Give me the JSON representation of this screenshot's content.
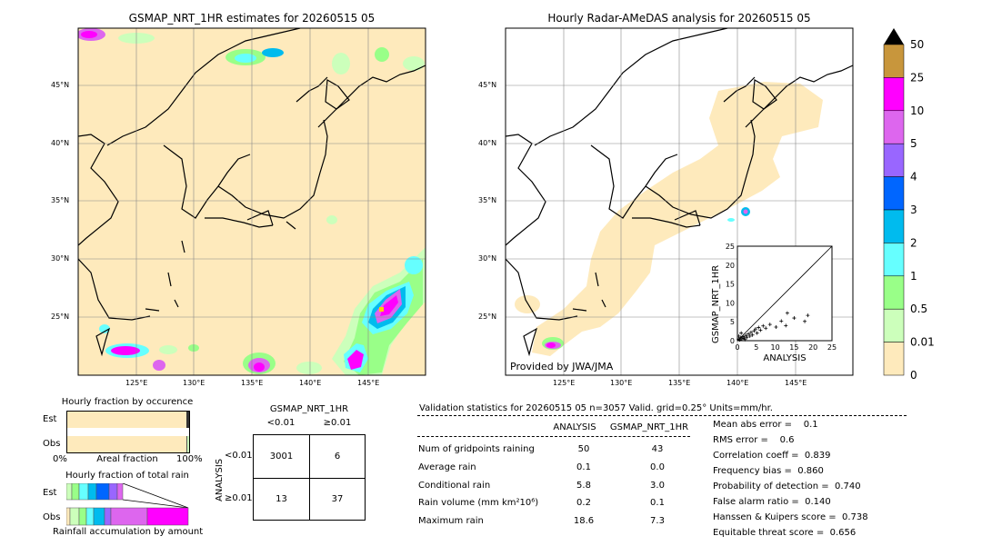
{
  "maps": {
    "left": {
      "title": "GSMAP_NRT_1HR estimates for 20260515 05",
      "lat_labels": [
        "45°N",
        "40°N",
        "35°N",
        "30°N",
        "25°N"
      ],
      "lon_labels": [
        "125°E",
        "130°E",
        "135°E",
        "140°E",
        "145°E"
      ]
    },
    "right": {
      "title": "Hourly Radar-AMeDAS analysis for 20260515 05",
      "lat_labels": [
        "45°N",
        "40°N",
        "35°N",
        "30°N",
        "25°N"
      ],
      "lon_labels": [
        "125°E",
        "130°E",
        "135°E",
        "140°E",
        "145°E"
      ],
      "credit": "Provided by JWA/JMA"
    }
  },
  "colorbar": {
    "labels": [
      "50",
      "25",
      "10",
      "5",
      "4",
      "3",
      "2",
      "1",
      "0.5",
      "0.01",
      "0"
    ],
    "colors": [
      "#c8963c",
      "#ff00ff",
      "#dd66ee",
      "#9966ff",
      "#0066ff",
      "#00bbee",
      "#66ffff",
      "#99ff88",
      "#ccffbb",
      "#feeabc"
    ],
    "extend_color": "#000000"
  },
  "scatter_inset": {
    "ylabel": "GSMAP_NRT_1HR",
    "xlabel": "ANALYSIS",
    "ticks": [
      "0",
      "5",
      "10",
      "15",
      "20",
      "25"
    ]
  },
  "occurrence": {
    "title": "Hourly fraction by occurence",
    "rows": [
      "Est",
      "Obs"
    ],
    "axis_left": "0%",
    "axis_mid": "Areal fraction",
    "axis_right": "100%",
    "est_no_rain_fraction": 0.986,
    "obs_no_rain_fraction": 0.984
  },
  "total_rain": {
    "title": "Hourly fraction of total rain",
    "rows": [
      "Est",
      "Obs"
    ],
    "footer": "Rainfall accumulation by amount"
  },
  "contingency": {
    "title": "GSMAP_NRT_1HR",
    "col_headers": [
      "<0.01",
      "≥0.01"
    ],
    "row_axis": "ANALYSIS",
    "row_headers": [
      "<0.01",
      "≥0.01"
    ],
    "cells": [
      [
        "3001",
        "6"
      ],
      [
        "13",
        "37"
      ]
    ]
  },
  "validation": {
    "header": "Validation statistics for 20260515 05  n=3057 Valid. grid=0.25° Units=mm/hr.",
    "col_analysis": "ANALYSIS",
    "col_gsmap": "GSMAP_NRT_1HR",
    "rows": [
      {
        "label": "Num of gridpoints raining",
        "analysis": "50",
        "gsmap": "43"
      },
      {
        "label": "Average rain",
        "analysis": "0.1",
        "gsmap": "0.0"
      },
      {
        "label": "Conditional rain",
        "analysis": "5.8",
        "gsmap": "3.0"
      },
      {
        "label": "Rain volume (mm km²10⁶)",
        "analysis": "0.2",
        "gsmap": "0.1"
      },
      {
        "label": "Maximum rain",
        "analysis": "18.6",
        "gsmap": "7.3"
      }
    ],
    "scores": [
      "Mean abs error =    0.1",
      "RMS error =    0.6",
      "Correlation coeff =  0.839",
      "Frequency bias =  0.860",
      "Probability of detection =  0.740",
      "False alarm ratio =  0.140",
      "Hanssen & Kuipers score =  0.738",
      "Equitable threat score =  0.656"
    ]
  },
  "chart_data": [
    {
      "type": "scatter",
      "xlabel": "ANALYSIS",
      "ylabel": "GSMAP_NRT_1HR",
      "xlim": [
        0,
        25
      ],
      "ylim": [
        0,
        25
      ],
      "reference_line": "y=x",
      "points": [
        [
          0.3,
          0.4
        ],
        [
          0.6,
          0.2
        ],
        [
          0.9,
          0.8
        ],
        [
          1.2,
          0.5
        ],
        [
          1.5,
          1.1
        ],
        [
          1.8,
          0.7
        ],
        [
          2.2,
          1.4
        ],
        [
          2.5,
          0.9
        ],
        [
          2.9,
          1.8
        ],
        [
          3.3,
          1.2
        ],
        [
          3.6,
          2.2
        ],
        [
          4.0,
          1.5
        ],
        [
          4.4,
          2.6
        ],
        [
          4.8,
          3.1
        ],
        [
          5.2,
          2.0
        ],
        [
          5.6,
          3.5
        ],
        [
          6.1,
          2.8
        ],
        [
          6.8,
          3.9
        ],
        [
          7.5,
          3.3
        ],
        [
          8.6,
          4.3
        ],
        [
          10.2,
          3.6
        ],
        [
          11.6,
          5.2
        ],
        [
          12.8,
          4.0
        ],
        [
          13.2,
          7.3
        ],
        [
          15.0,
          6.0
        ],
        [
          17.8,
          5.1
        ],
        [
          18.6,
          6.7
        ],
        [
          1.0,
          2.0
        ],
        [
          0.4,
          1.2
        ],
        [
          2.0,
          0.3
        ]
      ]
    },
    {
      "type": "bar",
      "title": "Hourly fraction by occurence",
      "categories": [
        "Est",
        "Obs"
      ],
      "series": [
        {
          "values": [
            0.986,
            0.984
          ]
        },
        {
          "values": [
            0.014,
            0.016
          ]
        }
      ],
      "xlabel": "Areal fraction",
      "xlim": [
        0,
        1
      ]
    },
    {
      "type": "table",
      "title": "GSMAP_NRT_1HR",
      "columns": [
        "<0.01",
        "≥0.01"
      ],
      "rows": [
        "<0.01",
        "≥0.01"
      ],
      "values": [
        [
          3001,
          6
        ],
        [
          13,
          37
        ]
      ]
    }
  ]
}
